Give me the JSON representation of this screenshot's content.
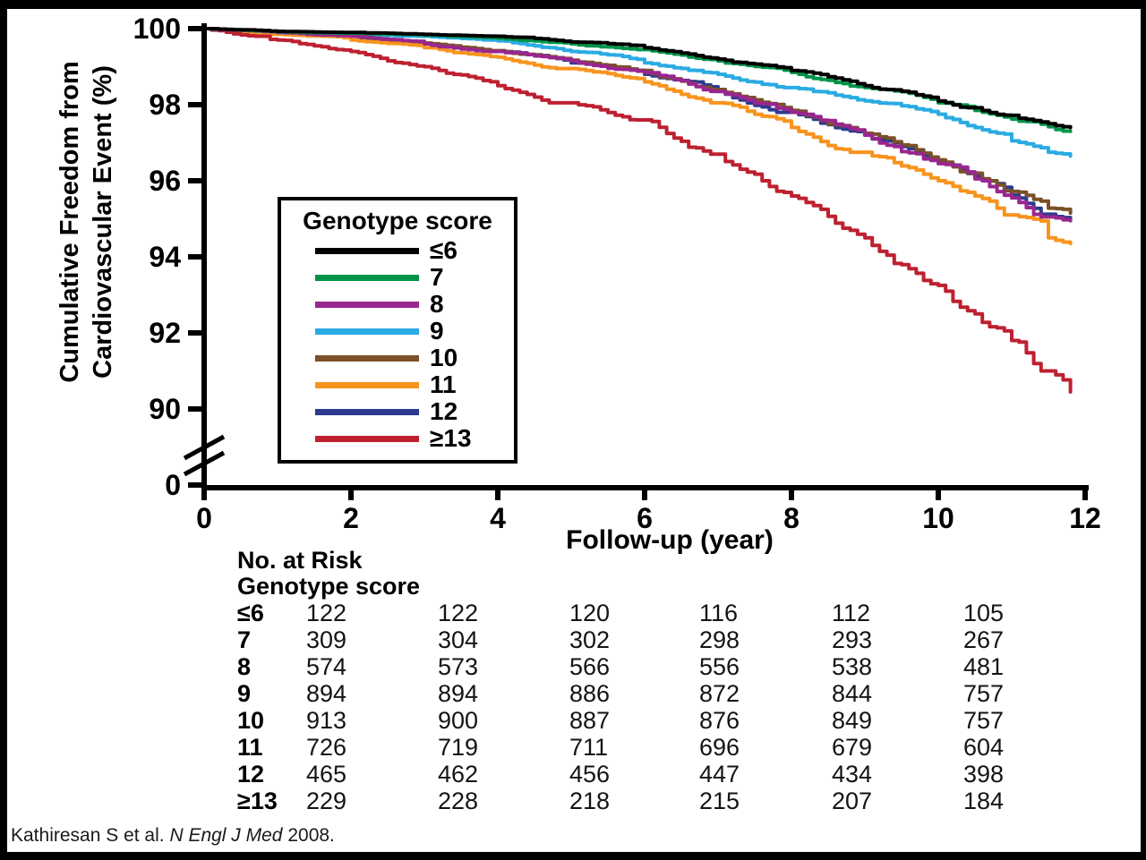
{
  "figure": {
    "citation": {
      "prefix": "Kathiresan S et al. ",
      "journal": "N Engl J Med",
      "suffix": " 2008."
    }
  },
  "chart_data": {
    "type": "line",
    "subtype": "kaplan-meier-step-curves",
    "title": "",
    "xlabel": "Follow-up (year)",
    "ylabel": "Cumulative Freedom from Cardiovascular Event (%)",
    "ylabel_lines": [
      "Cumulative Freedom from",
      "Cardiovascular Event (%)"
    ],
    "xlim": [
      0,
      12
    ],
    "x_ticks": [
      0,
      2,
      4,
      6,
      8,
      10,
      12
    ],
    "y_ticks": [
      100,
      98,
      96,
      94,
      92,
      90
    ],
    "y_zero_label": "0",
    "y_axis_break": true,
    "grid": false,
    "legend": {
      "title": "Genotype score",
      "position": "inside-left-center"
    },
    "series": [
      {
        "label": "≤6",
        "color": "#000000",
        "points": [
          [
            0,
            100
          ],
          [
            0.5,
            99.97
          ],
          [
            1,
            99.93
          ],
          [
            2,
            99.9
          ],
          [
            3,
            99.85
          ],
          [
            4,
            99.8
          ],
          [
            5,
            99.65
          ],
          [
            6,
            99.5
          ],
          [
            7,
            99.2
          ],
          [
            8,
            98.9
          ],
          [
            9,
            98.5
          ],
          [
            10,
            98.1
          ],
          [
            10.5,
            97.92
          ],
          [
            11,
            97.72
          ],
          [
            11.5,
            97.5
          ],
          [
            11.8,
            97.4
          ]
        ]
      },
      {
        "label": "7",
        "color": "#00944a",
        "points": [
          [
            0,
            100
          ],
          [
            1,
            99.92
          ],
          [
            2,
            99.88
          ],
          [
            3,
            99.83
          ],
          [
            4,
            99.75
          ],
          [
            5,
            99.6
          ],
          [
            6,
            99.45
          ],
          [
            7,
            99.15
          ],
          [
            8,
            98.85
          ],
          [
            9,
            98.45
          ],
          [
            10,
            98.05
          ],
          [
            10.5,
            97.85
          ],
          [
            11,
            97.62
          ],
          [
            11.5,
            97.42
          ],
          [
            11.8,
            97.3
          ]
        ]
      },
      {
        "label": "8",
        "color": "#99268f",
        "points": [
          [
            0,
            100
          ],
          [
            1,
            99.9
          ],
          [
            2,
            99.8
          ],
          [
            3,
            99.6
          ],
          [
            4,
            99.4
          ],
          [
            5,
            99.15
          ],
          [
            6,
            98.85
          ],
          [
            7,
            98.35
          ],
          [
            8,
            97.8
          ],
          [
            9,
            97.2
          ],
          [
            10,
            96.45
          ],
          [
            10.5,
            96.05
          ],
          [
            11,
            95.55
          ],
          [
            11.5,
            95.05
          ],
          [
            11.8,
            94.95
          ]
        ]
      },
      {
        "label": "9",
        "color": "#2aabe2",
        "points": [
          [
            0,
            100
          ],
          [
            1,
            99.9
          ],
          [
            2,
            99.85
          ],
          [
            3,
            99.8
          ],
          [
            4,
            99.68
          ],
          [
            5,
            99.4
          ],
          [
            6,
            99.1
          ],
          [
            7,
            98.8
          ],
          [
            8,
            98.45
          ],
          [
            9,
            98.1
          ],
          [
            10,
            97.75
          ],
          [
            10.5,
            97.4
          ],
          [
            11,
            97.05
          ],
          [
            11.5,
            96.75
          ],
          [
            11.8,
            96.65
          ]
        ]
      },
      {
        "label": "10",
        "color": "#7a5128",
        "points": [
          [
            0,
            100
          ],
          [
            1,
            99.9
          ],
          [
            2,
            99.82
          ],
          [
            3,
            99.62
          ],
          [
            4,
            99.42
          ],
          [
            5,
            99.17
          ],
          [
            6,
            98.9
          ],
          [
            7,
            98.4
          ],
          [
            8,
            97.85
          ],
          [
            9,
            97.25
          ],
          [
            10,
            96.55
          ],
          [
            10.5,
            96.2
          ],
          [
            11,
            95.72
          ],
          [
            11.5,
            95.28
          ],
          [
            11.8,
            95.15
          ]
        ]
      },
      {
        "label": "11",
        "color": "#f7941e",
        "points": [
          [
            0,
            100
          ],
          [
            1,
            99.85
          ],
          [
            2,
            99.7
          ],
          [
            3,
            99.5
          ],
          [
            4,
            99.25
          ],
          [
            5,
            98.95
          ],
          [
            6,
            98.6
          ],
          [
            7,
            98.05
          ],
          [
            8,
            97.4
          ],
          [
            9,
            96.75
          ],
          [
            10,
            96.0
          ],
          [
            10.5,
            95.6
          ],
          [
            11,
            95.1
          ],
          [
            11.5,
            94.5
          ],
          [
            11.8,
            94.35
          ]
        ]
      },
      {
        "label": "12",
        "color": "#2b3a8f",
        "points": [
          [
            0,
            100
          ],
          [
            1,
            99.9
          ],
          [
            2,
            99.8
          ],
          [
            3,
            99.6
          ],
          [
            4,
            99.4
          ],
          [
            5,
            99.1
          ],
          [
            6,
            98.8
          ],
          [
            7,
            98.35
          ],
          [
            8,
            97.8
          ],
          [
            9,
            97.2
          ],
          [
            10,
            96.5
          ],
          [
            10.5,
            96.12
          ],
          [
            11,
            95.62
          ],
          [
            11.5,
            95.12
          ],
          [
            11.8,
            95.0
          ]
        ]
      },
      {
        "label": "≥13",
        "color": "#be2030",
        "points": [
          [
            0,
            100
          ],
          [
            0.8,
            99.8
          ],
          [
            1,
            99.7
          ],
          [
            2,
            99.4
          ],
          [
            3,
            99.0
          ],
          [
            4,
            98.5
          ],
          [
            5,
            98.05
          ],
          [
            6,
            97.6
          ],
          [
            7,
            96.7
          ],
          [
            8,
            95.6
          ],
          [
            9,
            94.5
          ],
          [
            10,
            93.25
          ],
          [
            10.5,
            92.5
          ],
          [
            11,
            91.8
          ],
          [
            11.5,
            91.0
          ],
          [
            11.8,
            90.45
          ]
        ]
      }
    ]
  },
  "risk_table": {
    "title_line1": "No. at Risk",
    "title_line2": "Genotype score",
    "rows": [
      {
        "label": "≤6",
        "values": [
          122,
          122,
          120,
          116,
          112,
          105
        ]
      },
      {
        "label": "7",
        "values": [
          309,
          304,
          302,
          298,
          293,
          267
        ]
      },
      {
        "label": "8",
        "values": [
          574,
          573,
          566,
          556,
          538,
          481
        ]
      },
      {
        "label": "9",
        "values": [
          894,
          894,
          886,
          872,
          844,
          757
        ]
      },
      {
        "label": "10",
        "values": [
          913,
          900,
          887,
          876,
          849,
          757
        ]
      },
      {
        "label": "11",
        "values": [
          726,
          719,
          711,
          696,
          679,
          604
        ]
      },
      {
        "label": "12",
        "values": [
          465,
          462,
          456,
          447,
          434,
          398
        ]
      },
      {
        "label": "≥13",
        "values": [
          229,
          228,
          218,
          215,
          207,
          184
        ]
      }
    ]
  }
}
